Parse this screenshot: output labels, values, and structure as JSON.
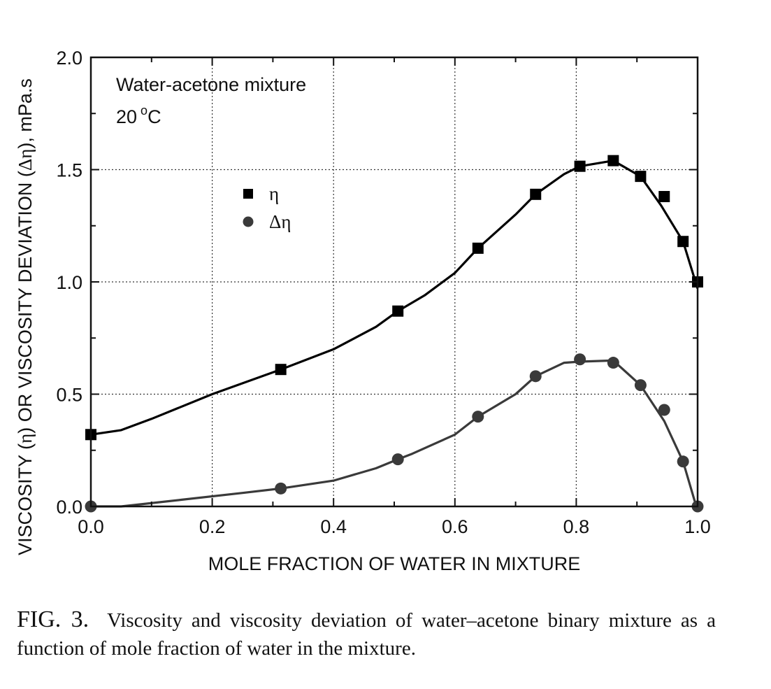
{
  "chart_data": {
    "type": "line",
    "title": "",
    "xlabel": "MOLE FRACTION OF WATER IN MIXTURE",
    "ylabel_parts": [
      "VISCOSITY (",
      "η",
      ") OR VISCOSITY DEVIATION (",
      "Δη",
      "), mPa.s"
    ],
    "xlim": [
      0.0,
      1.0
    ],
    "ylim": [
      0.0,
      2.0
    ],
    "x_ticks": [
      "0.0",
      "0.2",
      "0.4",
      "0.6",
      "0.8",
      "1.0"
    ],
    "y_ticks": [
      "0.0",
      "0.5",
      "1.0",
      "1.5",
      "2.0"
    ],
    "grid": "dotted",
    "annotation": {
      "line1": "Water-acetone mixture",
      "line2_value": "20",
      "line2_degree": "o",
      "line2_unit": "C"
    },
    "legend_position": "upper-left",
    "series": [
      {
        "name": "η",
        "marker": "square",
        "color": "#000000",
        "points": [
          [
            0.0,
            0.32
          ],
          [
            0.313,
            0.61
          ],
          [
            0.506,
            0.87
          ],
          [
            0.638,
            1.15
          ],
          [
            0.733,
            1.39
          ],
          [
            0.806,
            1.515
          ],
          [
            0.861,
            1.54
          ],
          [
            0.906,
            1.47
          ],
          [
            0.945,
            1.38
          ],
          [
            0.976,
            1.18
          ],
          [
            1.0,
            1.0
          ]
        ],
        "curve": [
          [
            0.0,
            0.32
          ],
          [
            0.05,
            0.34
          ],
          [
            0.1,
            0.39
          ],
          [
            0.2,
            0.5
          ],
          [
            0.313,
            0.61
          ],
          [
            0.4,
            0.7
          ],
          [
            0.47,
            0.8
          ],
          [
            0.506,
            0.87
          ],
          [
            0.55,
            0.94
          ],
          [
            0.6,
            1.04
          ],
          [
            0.638,
            1.15
          ],
          [
            0.7,
            1.3
          ],
          [
            0.733,
            1.39
          ],
          [
            0.78,
            1.48
          ],
          [
            0.806,
            1.515
          ],
          [
            0.861,
            1.54
          ],
          [
            0.906,
            1.47
          ],
          [
            0.94,
            1.34
          ],
          [
            0.976,
            1.18
          ],
          [
            1.0,
            0.97
          ]
        ]
      },
      {
        "name": "Δη",
        "marker": "circle",
        "color": "#3a3a3a",
        "points": [
          [
            0.0,
            0.0
          ],
          [
            0.313,
            0.08
          ],
          [
            0.506,
            0.21
          ],
          [
            0.638,
            0.4
          ],
          [
            0.733,
            0.58
          ],
          [
            0.806,
            0.655
          ],
          [
            0.861,
            0.64
          ],
          [
            0.906,
            0.54
          ],
          [
            0.945,
            0.43
          ],
          [
            0.976,
            0.2
          ],
          [
            1.0,
            0.0
          ]
        ],
        "curve": [
          [
            0.0,
            0.0
          ],
          [
            0.05,
            0.0
          ],
          [
            0.15,
            0.03
          ],
          [
            0.25,
            0.06
          ],
          [
            0.313,
            0.08
          ],
          [
            0.4,
            0.115
          ],
          [
            0.47,
            0.17
          ],
          [
            0.506,
            0.21
          ],
          [
            0.53,
            0.235
          ],
          [
            0.6,
            0.32
          ],
          [
            0.638,
            0.4
          ],
          [
            0.7,
            0.5
          ],
          [
            0.733,
            0.58
          ],
          [
            0.78,
            0.64
          ],
          [
            0.806,
            0.645
          ],
          [
            0.861,
            0.65
          ],
          [
            0.906,
            0.54
          ],
          [
            0.945,
            0.38
          ],
          [
            0.976,
            0.2
          ],
          [
            1.0,
            -0.02
          ]
        ]
      }
    ]
  },
  "caption": {
    "label": "FIG. 3.",
    "text": "Viscosity and viscosity deviation of water–acetone binary mixture as a function of mole fraction of water in the mixture."
  }
}
